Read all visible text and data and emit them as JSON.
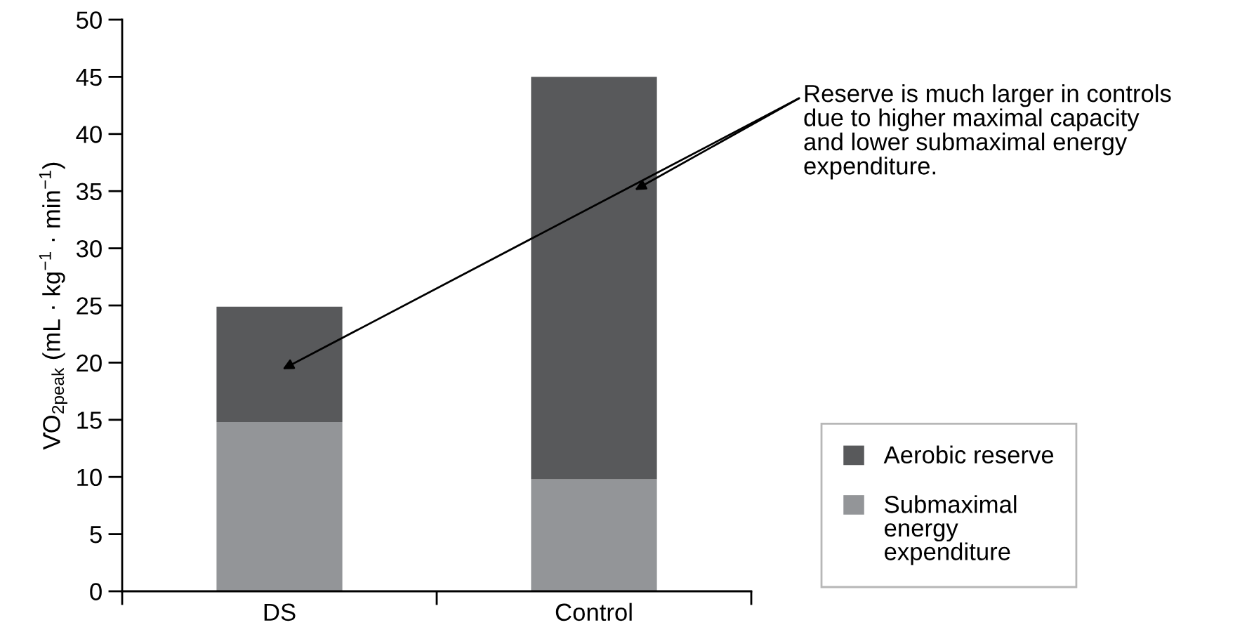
{
  "chart_data": {
    "type": "bar",
    "stacked": true,
    "categories": [
      "DS",
      "Control"
    ],
    "series": [
      {
        "name": "Submaximal energy expenditure",
        "color": "#939598",
        "values": [
          14.8,
          9.8
        ]
      },
      {
        "name": "Aerobic reserve",
        "color": "#58595b",
        "values": [
          10.1,
          35.2
        ]
      }
    ],
    "ylabel": "V̇O$_{2peak}$ (mL · kg$^{−1}$ · min$^{−1}$)",
    "ylim": [
      0,
      50
    ],
    "yticks": [
      0,
      5,
      10,
      15,
      20,
      25,
      30,
      35,
      40,
      45,
      50
    ],
    "legend": "bottom right",
    "annotations": [
      "Reserve is much larger in controls\ndue to higher maximal capacity\nand lower submaximal energy\nexpenditure."
    ]
  }
}
